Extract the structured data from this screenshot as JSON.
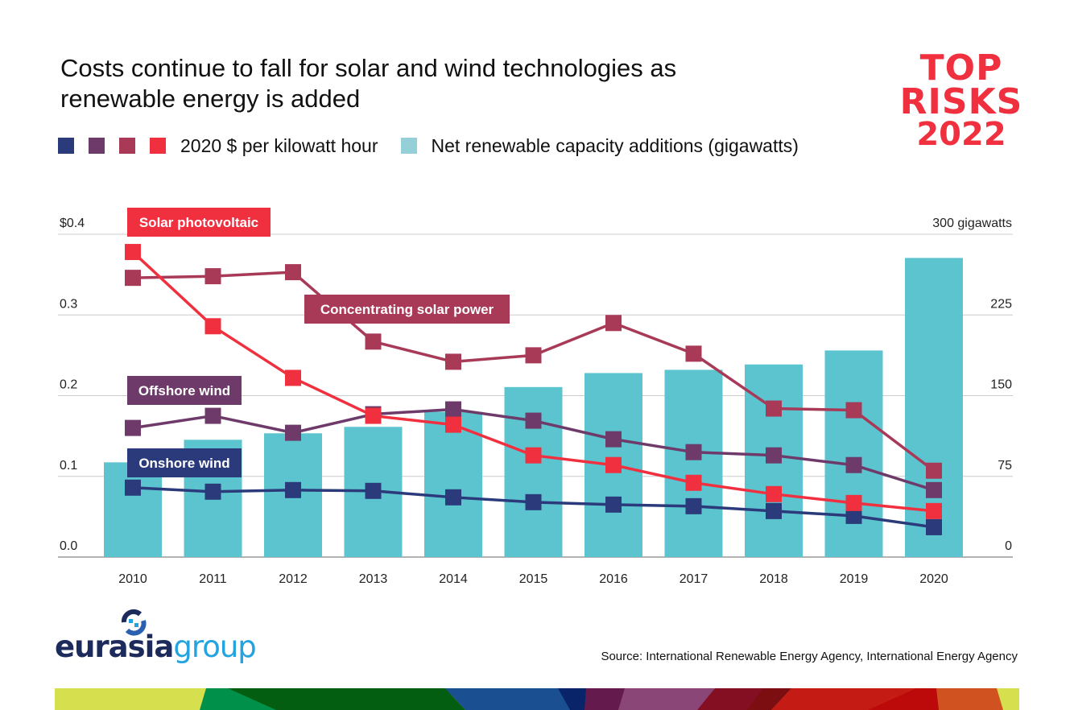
{
  "header": {
    "title": "Costs continue to fall for solar and wind technologies as renewable energy is added",
    "brand_line1": "TOP",
    "brand_line2": "RISKS",
    "brand_line3": "2022"
  },
  "legend": {
    "cost_label": "2020 $ per kilowatt hour",
    "capacity_label": "Net renewable capacity additions (gigawatts)",
    "cost_swatch_colors": [
      "#2b3a7a",
      "#6e3a69",
      "#a83a58",
      "#f0303f"
    ],
    "capacity_color": "#5cc4cf"
  },
  "footer": {
    "logo_part1": "eurasia",
    "logo_part2": "group",
    "source": "Source: International Renewable Energy Agency, International Energy Agency"
  },
  "chart_data": {
    "type": "bar+line",
    "title": "Costs continue to fall for solar and wind technologies as renewable energy is added",
    "categories": [
      "2010",
      "2011",
      "2012",
      "2013",
      "2014",
      "2015",
      "2016",
      "2017",
      "2018",
      "2019",
      "2020"
    ],
    "left_axis": {
      "label": "2020 $ per kilowatt hour",
      "ylim": [
        0,
        0.4
      ],
      "ticks": [
        0.0,
        0.1,
        0.2,
        0.3,
        0.4
      ],
      "tick_labels": [
        "0.0",
        "0.1",
        "0.2",
        "0.3",
        "$0.4"
      ]
    },
    "right_axis": {
      "label": "Net renewable capacity additions (gigawatts)",
      "ylim": [
        0,
        300
      ],
      "ticks": [
        0,
        75,
        150,
        225,
        300
      ],
      "tick_labels": [
        "0",
        "75",
        "150",
        "225",
        "300 gigawatts"
      ]
    },
    "grid": true,
    "bars": {
      "name": "Net renewable capacity additions (gigawatts)",
      "axis": "right",
      "color": "#5cc4cf",
      "values": [
        88,
        109,
        115,
        121,
        135,
        158,
        171,
        174,
        179,
        192,
        278
      ]
    },
    "series": [
      {
        "name": "Solar photovoltaic",
        "axis": "left",
        "color": "#f0303f",
        "values": [
          0.378,
          0.286,
          0.222,
          0.175,
          0.164,
          0.126,
          0.114,
          0.092,
          0.078,
          0.067,
          0.057
        ]
      },
      {
        "name": "Concentrating solar power",
        "axis": "left",
        "color": "#a83a58",
        "values": [
          0.346,
          0.348,
          0.353,
          0.267,
          0.242,
          0.25,
          0.29,
          0.252,
          0.184,
          0.182,
          0.107
        ]
      },
      {
        "name": "Offshore wind",
        "axis": "left",
        "color": "#6e3a69",
        "values": [
          0.16,
          0.175,
          0.154,
          0.177,
          0.183,
          0.169,
          0.146,
          0.13,
          0.126,
          0.114,
          0.083
        ]
      },
      {
        "name": "Onshore wind",
        "axis": "left",
        "color": "#2b3a7a",
        "values": [
          0.086,
          0.081,
          0.083,
          0.082,
          0.074,
          0.068,
          0.065,
          0.063,
          0.057,
          0.051,
          0.037
        ]
      }
    ],
    "series_labels": [
      {
        "text": "Solar photovoltaic",
        "series": 0
      },
      {
        "text": "Concentrating solar power",
        "series": 1
      },
      {
        "text": "Offshore wind",
        "series": 2
      },
      {
        "text": "Onshore wind",
        "series": 3
      }
    ]
  }
}
